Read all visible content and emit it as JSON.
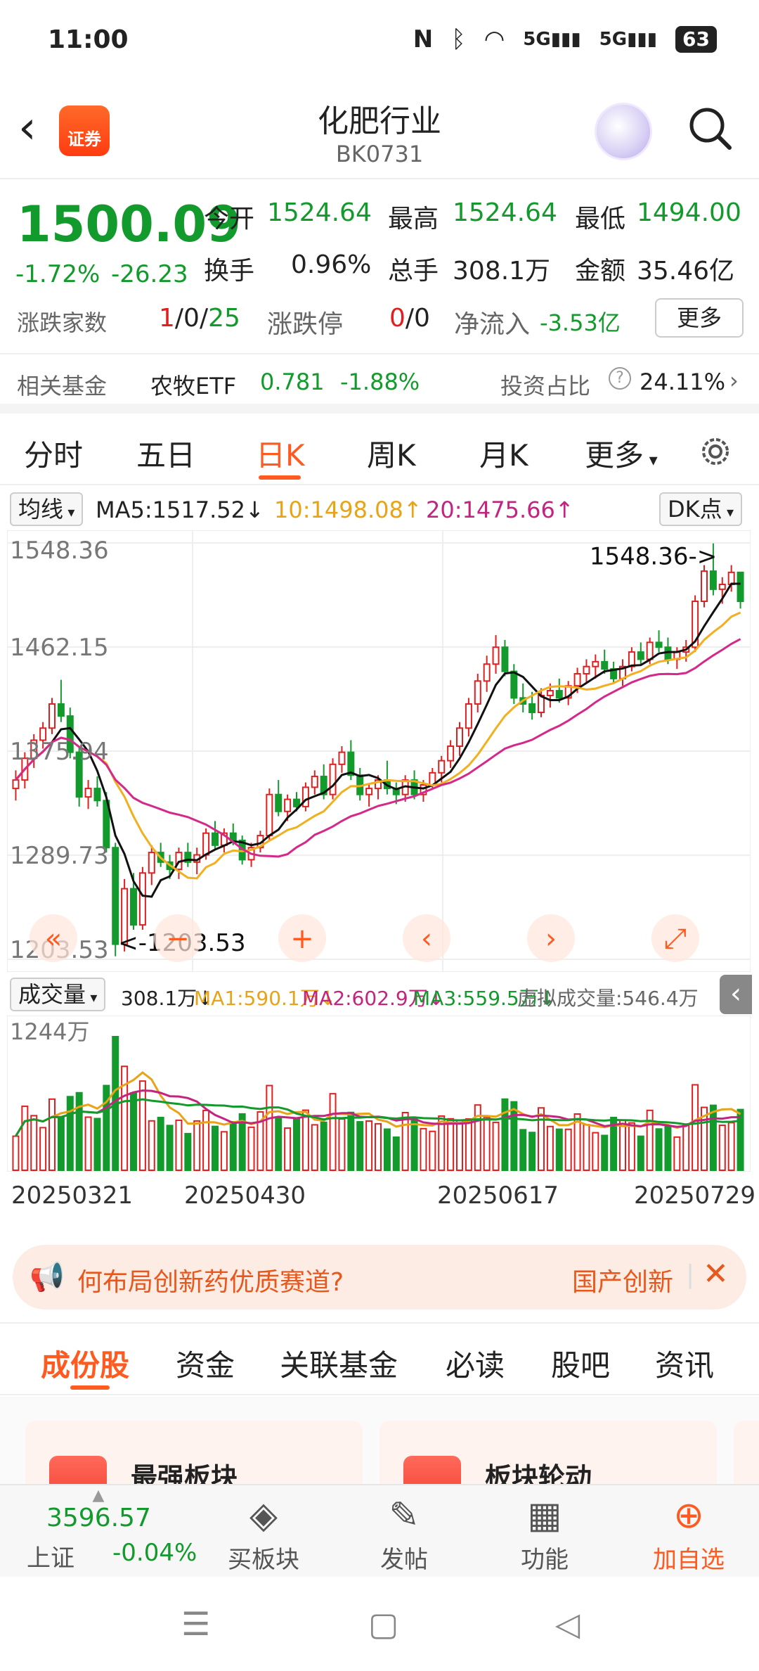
{
  "status": {
    "time": "11:00",
    "battery": "63",
    "net1": "5G",
    "net2": "5G"
  },
  "header": {
    "title": "化肥行业",
    "code": "BK0731",
    "logo_text": "证券"
  },
  "quote": {
    "price": "1500.09",
    "change_pct": "-1.72%",
    "change": "-26.23",
    "open_label": "今开",
    "open": "1524.64",
    "high_label": "最高",
    "high": "1524.64",
    "low_label": "最低",
    "low": "1494.00",
    "turnover_label": "换手",
    "turnover": "0.96%",
    "volume_label": "总手",
    "volume": "308.1万",
    "amount_label": "金额",
    "amount": "35.46亿",
    "adv_label": "涨跌家数",
    "adv_up": "1",
    "adv_flat": "0",
    "adv_down": "25",
    "limit_label": "涨跌停",
    "limit_up": "0",
    "limit_down": "0",
    "netflow_label": "净流入",
    "netflow": "-3.53亿",
    "more_label": "更多"
  },
  "fund": {
    "label": "相关基金",
    "name": "农牧ETF",
    "value": "0.781",
    "change": "-1.88%",
    "ratio_label": "投资占比",
    "ratio": "24.11%"
  },
  "tabs": [
    "分时",
    "五日",
    "日K",
    "周K",
    "月K",
    "更多"
  ],
  "active_tab": "日K",
  "chart_bar": {
    "select": "均线",
    "ma5": "MA5:1517.52↓",
    "ma10": "10:1498.08↑",
    "ma20": "20:1475.66↑",
    "dk": "DK点"
  },
  "vol_bar": {
    "select": "成交量",
    "vol": "308.1万↓",
    "ma1": "MA1:590.1万↓",
    "ma2": "MA2:602.9万↓",
    "ma3": "MA3:559.5万↓",
    "virtual": "虚拟成交量:546.4万"
  },
  "chart_data": {
    "type": "candlestick",
    "y_ticks": [
      "1548.36",
      "1462.15",
      "1375.94",
      "1289.73",
      "1203.53"
    ],
    "ylim": [
      1203.53,
      1548.36
    ],
    "max_annotation": "1548.36->",
    "min_annotation": "<-1203.53",
    "candles": [
      [
        1345,
        1360,
        1335,
        1352
      ],
      [
        1352,
        1375,
        1345,
        1370
      ],
      [
        1370,
        1390,
        1362,
        1385
      ],
      [
        1385,
        1400,
        1378,
        1395
      ],
      [
        1395,
        1420,
        1390,
        1415
      ],
      [
        1415,
        1435,
        1400,
        1405
      ],
      [
        1405,
        1412,
        1370,
        1375
      ],
      [
        1375,
        1380,
        1330,
        1338
      ],
      [
        1338,
        1352,
        1328,
        1345
      ],
      [
        1345,
        1355,
        1330,
        1335
      ],
      [
        1335,
        1342,
        1292,
        1296
      ],
      [
        1296,
        1300,
        1206,
        1216
      ],
      [
        1216,
        1270,
        1210,
        1262
      ],
      [
        1262,
        1275,
        1228,
        1232
      ],
      [
        1232,
        1280,
        1228,
        1275
      ],
      [
        1275,
        1298,
        1265,
        1292
      ],
      [
        1292,
        1300,
        1280,
        1284
      ],
      [
        1284,
        1290,
        1270,
        1278
      ],
      [
        1278,
        1296,
        1270,
        1292
      ],
      [
        1292,
        1300,
        1280,
        1284
      ],
      [
        1284,
        1296,
        1274,
        1290
      ],
      [
        1290,
        1312,
        1286,
        1308
      ],
      [
        1308,
        1318,
        1294,
        1298
      ],
      [
        1298,
        1312,
        1292,
        1308
      ],
      [
        1308,
        1316,
        1298,
        1302
      ],
      [
        1302,
        1306,
        1282,
        1286
      ],
      [
        1286,
        1300,
        1280,
        1296
      ],
      [
        1296,
        1310,
        1292,
        1306
      ],
      [
        1306,
        1345,
        1302,
        1340
      ],
      [
        1340,
        1352,
        1322,
        1326
      ],
      [
        1326,
        1340,
        1318,
        1336
      ],
      [
        1336,
        1342,
        1326,
        1330
      ],
      [
        1330,
        1350,
        1326,
        1346
      ],
      [
        1346,
        1360,
        1340,
        1355
      ],
      [
        1355,
        1365,
        1336,
        1340
      ],
      [
        1340,
        1370,
        1336,
        1365
      ],
      [
        1365,
        1380,
        1358,
        1375
      ],
      [
        1375,
        1385,
        1352,
        1356
      ],
      [
        1356,
        1362,
        1335,
        1340
      ],
      [
        1340,
        1348,
        1330,
        1345
      ],
      [
        1345,
        1356,
        1336,
        1352
      ],
      [
        1352,
        1368,
        1340,
        1345
      ],
      [
        1345,
        1350,
        1332,
        1340
      ],
      [
        1340,
        1356,
        1334,
        1352
      ],
      [
        1352,
        1360,
        1336,
        1340
      ],
      [
        1340,
        1352,
        1334,
        1348
      ],
      [
        1348,
        1362,
        1344,
        1358
      ],
      [
        1358,
        1372,
        1350,
        1368
      ],
      [
        1368,
        1385,
        1362,
        1380
      ],
      [
        1380,
        1400,
        1372,
        1395
      ],
      [
        1395,
        1420,
        1388,
        1415
      ],
      [
        1415,
        1440,
        1408,
        1434
      ],
      [
        1434,
        1455,
        1425,
        1448
      ],
      [
        1448,
        1472,
        1440,
        1462
      ],
      [
        1462,
        1468,
        1438,
        1442
      ],
      [
        1442,
        1448,
        1415,
        1420
      ],
      [
        1420,
        1432,
        1408,
        1415
      ],
      [
        1415,
        1425,
        1402,
        1408
      ],
      [
        1408,
        1428,
        1404,
        1422
      ],
      [
        1422,
        1432,
        1412,
        1426
      ],
      [
        1426,
        1436,
        1416,
        1420
      ],
      [
        1420,
        1434,
        1414,
        1430
      ],
      [
        1430,
        1445,
        1424,
        1440
      ],
      [
        1440,
        1452,
        1432,
        1446
      ],
      [
        1446,
        1456,
        1436,
        1450
      ],
      [
        1450,
        1460,
        1440,
        1444
      ],
      [
        1444,
        1450,
        1432,
        1436
      ],
      [
        1436,
        1452,
        1430,
        1446
      ],
      [
        1446,
        1462,
        1442,
        1458
      ],
      [
        1458,
        1466,
        1448,
        1452
      ],
      [
        1452,
        1470,
        1448,
        1466
      ],
      [
        1466,
        1476,
        1458,
        1462
      ],
      [
        1462,
        1470,
        1448,
        1452
      ],
      [
        1452,
        1462,
        1444,
        1458
      ],
      [
        1458,
        1468,
        1450,
        1462
      ],
      [
        1462,
        1505,
        1458,
        1500
      ],
      [
        1500,
        1530,
        1495,
        1525
      ],
      [
        1525,
        1548,
        1505,
        1510
      ],
      [
        1510,
        1520,
        1498,
        1514
      ],
      [
        1514,
        1530,
        1508,
        1524
      ],
      [
        1524,
        1524,
        1494,
        1500
      ]
    ],
    "ma_lines": [
      {
        "name": "MA5",
        "color": "#111111"
      },
      {
        "name": "10",
        "color": "#f0b020"
      },
      {
        "name": "20",
        "color": "#d4288a"
      }
    ],
    "volume": {
      "y_label": "1244万",
      "dates": [
        "20250321",
        "20250430",
        "20250617",
        "20250729"
      ]
    }
  },
  "banner": {
    "text": "何布局创新药优质赛道?",
    "tag": "国产创新"
  },
  "subtabs": [
    "成份股",
    "资金",
    "关联基金",
    "必读",
    "股吧",
    "资讯"
  ],
  "active_subtab": "成份股",
  "cards": [
    {
      "label": "最强板块"
    },
    {
      "label": "板块轮动"
    }
  ],
  "bottom_nav": {
    "index_value": "3596.57",
    "index_name": "上证",
    "index_change": "-0.04%",
    "items": [
      {
        "label": "买板块"
      },
      {
        "label": "发帖"
      },
      {
        "label": "功能"
      },
      {
        "label": "加自选"
      }
    ]
  },
  "colors": {
    "up": "#e02020",
    "down": "#139a2c",
    "accent": "#ff5a1f"
  }
}
